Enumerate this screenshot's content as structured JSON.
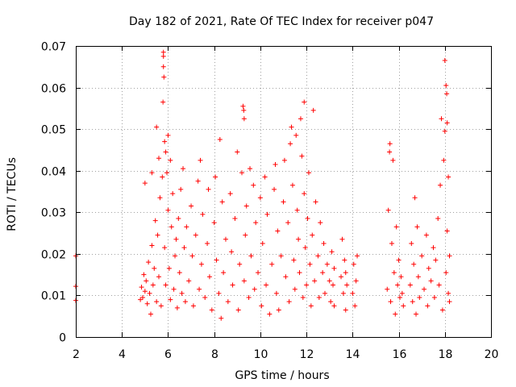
{
  "chart_data": {
    "type": "scatter",
    "title": "Day 182 of 2021, Rate Of TEC Index for receiver p047",
    "xlabel": "GPS time / hours",
    "ylabel": "ROTI / TECUs",
    "xlim": [
      2,
      20
    ],
    "ylim": [
      0,
      0.07
    ],
    "grid": true,
    "marker": "+",
    "color": "#ff0000",
    "x_ticks": [
      {
        "value": 2,
        "label": "2"
      },
      {
        "value": 4,
        "label": "4"
      },
      {
        "value": 6,
        "label": "6"
      },
      {
        "value": 8,
        "label": "8"
      },
      {
        "value": 10,
        "label": "10"
      },
      {
        "value": 12,
        "label": "12"
      },
      {
        "value": 14,
        "label": "14"
      },
      {
        "value": 16,
        "label": "16"
      },
      {
        "value": 18,
        "label": "18"
      },
      {
        "value": 20,
        "label": "20"
      }
    ],
    "y_ticks": [
      {
        "value": 0,
        "label": "0"
      },
      {
        "value": 0.01,
        "label": "0.01"
      },
      {
        "value": 0.02,
        "label": "0.02"
      },
      {
        "value": 0.03,
        "label": "0.03"
      },
      {
        "value": 0.04,
        "label": "0.04"
      },
      {
        "value": 0.05,
        "label": "0.05"
      },
      {
        "value": 0.06,
        "label": "0.06"
      },
      {
        "value": 0.07,
        "label": "0.07"
      }
    ],
    "series": [
      {
        "name": "ROTI",
        "points": [
          [
            2.0,
            0.0195
          ],
          [
            2.0,
            0.0122
          ],
          [
            2.0,
            0.0088
          ],
          [
            4.8,
            0.009
          ],
          [
            4.85,
            0.012
          ],
          [
            4.9,
            0.0095
          ],
          [
            4.95,
            0.015
          ],
          [
            5.0,
            0.011
          ],
          [
            5.0,
            0.037
          ],
          [
            5.05,
            0.0135
          ],
          [
            5.1,
            0.008
          ],
          [
            5.15,
            0.018
          ],
          [
            5.2,
            0.0105
          ],
          [
            5.25,
            0.0055
          ],
          [
            5.3,
            0.022
          ],
          [
            5.3,
            0.0395
          ],
          [
            5.35,
            0.0125
          ],
          [
            5.4,
            0.0165
          ],
          [
            5.45,
            0.028
          ],
          [
            5.5,
            0.0085
          ],
          [
            5.5,
            0.0505
          ],
          [
            5.55,
            0.0245
          ],
          [
            5.6,
            0.043
          ],
          [
            5.6,
            0.0145
          ],
          [
            5.65,
            0.0335
          ],
          [
            5.7,
            0.0075
          ],
          [
            5.75,
            0.0385
          ],
          [
            5.8,
            0.0685
          ],
          [
            5.8,
            0.0675
          ],
          [
            5.8,
            0.065
          ],
          [
            5.82,
            0.0625
          ],
          [
            5.78,
            0.0565
          ],
          [
            5.85,
            0.047
          ],
          [
            5.85,
            0.0215
          ],
          [
            5.9,
            0.0445
          ],
          [
            5.9,
            0.0125
          ],
          [
            5.95,
            0.0395
          ],
          [
            6.0,
            0.0485
          ],
          [
            6.0,
            0.0305
          ],
          [
            6.05,
            0.0165
          ],
          [
            6.1,
            0.0425
          ],
          [
            6.1,
            0.009
          ],
          [
            6.15,
            0.0265
          ],
          [
            6.2,
            0.0345
          ],
          [
            6.25,
            0.0115
          ],
          [
            6.3,
            0.0195
          ],
          [
            6.35,
            0.0235
          ],
          [
            6.4,
            0.007
          ],
          [
            6.45,
            0.0285
          ],
          [
            6.5,
            0.0155
          ],
          [
            6.55,
            0.0355
          ],
          [
            6.6,
            0.0105
          ],
          [
            6.65,
            0.0405
          ],
          [
            6.7,
            0.0215
          ],
          [
            6.75,
            0.0085
          ],
          [
            6.8,
            0.0265
          ],
          [
            6.9,
            0.0135
          ],
          [
            7.0,
            0.0315
          ],
          [
            7.05,
            0.0195
          ],
          [
            7.1,
            0.0075
          ],
          [
            7.2,
            0.0245
          ],
          [
            7.3,
            0.0375
          ],
          [
            7.35,
            0.0115
          ],
          [
            7.4,
            0.0425
          ],
          [
            7.45,
            0.0175
          ],
          [
            7.5,
            0.0295
          ],
          [
            7.6,
            0.0095
          ],
          [
            7.7,
            0.0225
          ],
          [
            7.75,
            0.0355
          ],
          [
            7.8,
            0.0145
          ],
          [
            7.9,
            0.0065
          ],
          [
            8.0,
            0.0275
          ],
          [
            8.05,
            0.0385
          ],
          [
            8.1,
            0.0185
          ],
          [
            8.2,
            0.0105
          ],
          [
            8.25,
            0.0475
          ],
          [
            8.3,
            0.0045
          ],
          [
            8.35,
            0.0325
          ],
          [
            8.4,
            0.0155
          ],
          [
            8.5,
            0.0235
          ],
          [
            8.6,
            0.0085
          ],
          [
            8.7,
            0.0345
          ],
          [
            8.75,
            0.0205
          ],
          [
            8.8,
            0.0125
          ],
          [
            8.9,
            0.0285
          ],
          [
            9.0,
            0.0445
          ],
          [
            9.05,
            0.0065
          ],
          [
            9.1,
            0.0175
          ],
          [
            9.2,
            0.0395
          ],
          [
            9.25,
            0.0555
          ],
          [
            9.28,
            0.0545
          ],
          [
            9.3,
            0.0525
          ],
          [
            9.3,
            0.0135
          ],
          [
            9.35,
            0.0245
          ],
          [
            9.4,
            0.0315
          ],
          [
            9.5,
            0.0095
          ],
          [
            9.55,
            0.0405
          ],
          [
            9.6,
            0.0195
          ],
          [
            9.7,
            0.0365
          ],
          [
            9.75,
            0.0115
          ],
          [
            9.8,
            0.0275
          ],
          [
            9.9,
            0.0155
          ],
          [
            10.0,
            0.0335
          ],
          [
            10.05,
            0.0075
          ],
          [
            10.1,
            0.0225
          ],
          [
            10.2,
            0.0385
          ],
          [
            10.25,
            0.0125
          ],
          [
            10.3,
            0.0295
          ],
          [
            10.4,
            0.0055
          ],
          [
            10.5,
            0.0175
          ],
          [
            10.6,
            0.0355
          ],
          [
            10.65,
            0.0415
          ],
          [
            10.7,
            0.0105
          ],
          [
            10.75,
            0.0255
          ],
          [
            10.8,
            0.0065
          ],
          [
            10.9,
            0.0195
          ],
          [
            11.0,
            0.0325
          ],
          [
            11.05,
            0.0425
          ],
          [
            11.1,
            0.0145
          ],
          [
            11.2,
            0.0275
          ],
          [
            11.25,
            0.0085
          ],
          [
            11.3,
            0.0465
          ],
          [
            11.35,
            0.0505
          ],
          [
            11.4,
            0.0365
          ],
          [
            11.45,
            0.0185
          ],
          [
            11.5,
            0.0115
          ],
          [
            11.55,
            0.0485
          ],
          [
            11.6,
            0.0305
          ],
          [
            11.65,
            0.0235
          ],
          [
            11.7,
            0.0155
          ],
          [
            11.75,
            0.0525
          ],
          [
            11.8,
            0.0435
          ],
          [
            11.85,
            0.0095
          ],
          [
            11.9,
            0.0565
          ],
          [
            11.9,
            0.0345
          ],
          [
            11.95,
            0.0215
          ],
          [
            12.0,
            0.0125
          ],
          [
            12.05,
            0.0285
          ],
          [
            12.1,
            0.0395
          ],
          [
            12.15,
            0.0175
          ],
          [
            12.2,
            0.0075
          ],
          [
            12.25,
            0.0245
          ],
          [
            12.3,
            0.0545
          ],
          [
            12.35,
            0.0135
          ],
          [
            12.4,
            0.0325
          ],
          [
            12.5,
            0.0195
          ],
          [
            12.55,
            0.0095
          ],
          [
            12.6,
            0.0275
          ],
          [
            12.7,
            0.0155
          ],
          [
            12.75,
            0.0225
          ],
          [
            12.8,
            0.0105
          ],
          [
            12.9,
            0.0175
          ],
          [
            13.0,
            0.0135
          ],
          [
            13.05,
            0.0085
          ],
          [
            13.1,
            0.0205
          ],
          [
            13.15,
            0.0125
          ],
          [
            13.2,
            0.0075
          ],
          [
            13.2,
            0.0165
          ],
          [
            13.5,
            0.0145
          ],
          [
            13.55,
            0.0235
          ],
          [
            13.6,
            0.0105
          ],
          [
            13.65,
            0.0185
          ],
          [
            13.7,
            0.0065
          ],
          [
            13.7,
            0.0155
          ],
          [
            13.75,
            0.0125
          ],
          [
            14.0,
            0.0105
          ],
          [
            14.05,
            0.0175
          ],
          [
            14.1,
            0.0075
          ],
          [
            14.15,
            0.0135
          ],
          [
            14.2,
            0.0195
          ],
          [
            15.5,
            0.0115
          ],
          [
            15.55,
            0.0305
          ],
          [
            15.6,
            0.0445
          ],
          [
            15.62,
            0.0465
          ],
          [
            15.65,
            0.0085
          ],
          [
            15.7,
            0.0225
          ],
          [
            15.75,
            0.0425
          ],
          [
            15.8,
            0.0155
          ],
          [
            15.85,
            0.0055
          ],
          [
            15.9,
            0.0265
          ],
          [
            15.95,
            0.0125
          ],
          [
            16.0,
            0.0185
          ],
          [
            16.05,
            0.0095
          ],
          [
            16.1,
            0.0145
          ],
          [
            16.15,
            0.0105
          ],
          [
            16.2,
            0.0075
          ],
          [
            16.5,
            0.0125
          ],
          [
            16.55,
            0.0225
          ],
          [
            16.6,
            0.0085
          ],
          [
            16.65,
            0.0175
          ],
          [
            16.7,
            0.0335
          ],
          [
            16.75,
            0.0055
          ],
          [
            16.8,
            0.0265
          ],
          [
            16.85,
            0.0145
          ],
          [
            16.9,
            0.0095
          ],
          [
            17.0,
            0.0195
          ],
          [
            17.1,
            0.0115
          ],
          [
            17.2,
            0.0245
          ],
          [
            17.25,
            0.0075
          ],
          [
            17.3,
            0.0165
          ],
          [
            17.4,
            0.0135
          ],
          [
            17.5,
            0.0215
          ],
          [
            17.55,
            0.0095
          ],
          [
            17.6,
            0.0185
          ],
          [
            17.7,
            0.0285
          ],
          [
            17.75,
            0.0125
          ],
          [
            17.8,
            0.0365
          ],
          [
            17.85,
            0.0525
          ],
          [
            17.9,
            0.0065
          ],
          [
            17.95,
            0.0425
          ],
          [
            18.0,
            0.0495
          ],
          [
            18.0,
            0.0665
          ],
          [
            18.05,
            0.0605
          ],
          [
            18.05,
            0.0155
          ],
          [
            18.08,
            0.0585
          ],
          [
            18.1,
            0.0515
          ],
          [
            18.1,
            0.0255
          ],
          [
            18.15,
            0.0385
          ],
          [
            18.15,
            0.0105
          ],
          [
            18.2,
            0.0195
          ],
          [
            18.2,
            0.0085
          ]
        ]
      }
    ]
  }
}
